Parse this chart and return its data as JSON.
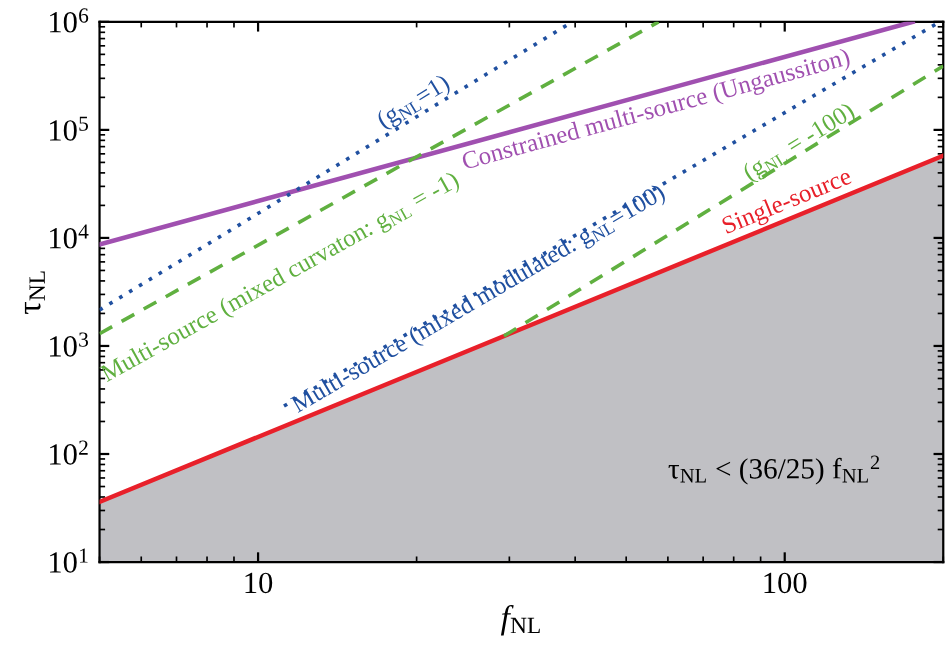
{
  "chart_data": {
    "type": "line",
    "xlabel": "f$_{NL}$",
    "ylabel": "τ$_{NL}$",
    "log": "xy",
    "xlim": [
      5,
      200
    ],
    "ylim": [
      10,
      1000000
    ],
    "xticks": [
      10,
      100
    ],
    "yticks": [
      {
        "value": 10,
        "label": "10$^{1}$"
      },
      {
        "value": 100,
        "label": "10$^{2}$"
      },
      {
        "value": 1000,
        "label": "10$^{3}$"
      },
      {
        "value": 10000,
        "label": "10$^{4}$"
      },
      {
        "value": 100000,
        "label": "10$^{5}$"
      },
      {
        "value": 1000000,
        "label": "10$^{6}$"
      }
    ],
    "grid": false,
    "series": [
      {
        "type": "area",
        "line_style": "solid",
        "color": "#e8202a",
        "x": [
          5,
          200
        ],
        "values": [
          36,
          57600
        ]
      },
      {
        "line_style": "solid",
        "color": "#a050b0",
        "x": [
          5,
          175
        ],
        "values": [
          8700,
          1000000
        ]
      },
      {
        "line_style": "dotted",
        "color": "#2050a0",
        "x": [
          5,
          39.5
        ],
        "values": [
          2150,
          1000000
        ]
      },
      {
        "line_style": "dashed",
        "color": "#60b040",
        "x": [
          5,
          57.6
        ],
        "values": [
          1300,
          1000000
        ]
      },
      {
        "line_style": "dotted",
        "color": "#2050a0",
        "x": [
          11.2,
          197
        ],
        "values": [
          278,
          1000000
        ]
      },
      {
        "line_style": "dashed",
        "color": "#60b040",
        "x": [
          29.3,
          200
        ],
        "values": [
          1236,
          390000
        ]
      }
    ],
    "annotations": [
      "(g$_{NL}$=1)",
      "Constrained multi-source (Ungaussiton)",
      "Multi-source (mixed curvaton: g$_{NL}$ = -1)",
      "Multi-source (mixed modulated: g$_{NL}$=100)",
      "(g$_{NL}$ = -100)",
      "Single-source",
      "τ$_{NL}$ < (36/25) f$_{NL}$$^{2}$"
    ]
  }
}
